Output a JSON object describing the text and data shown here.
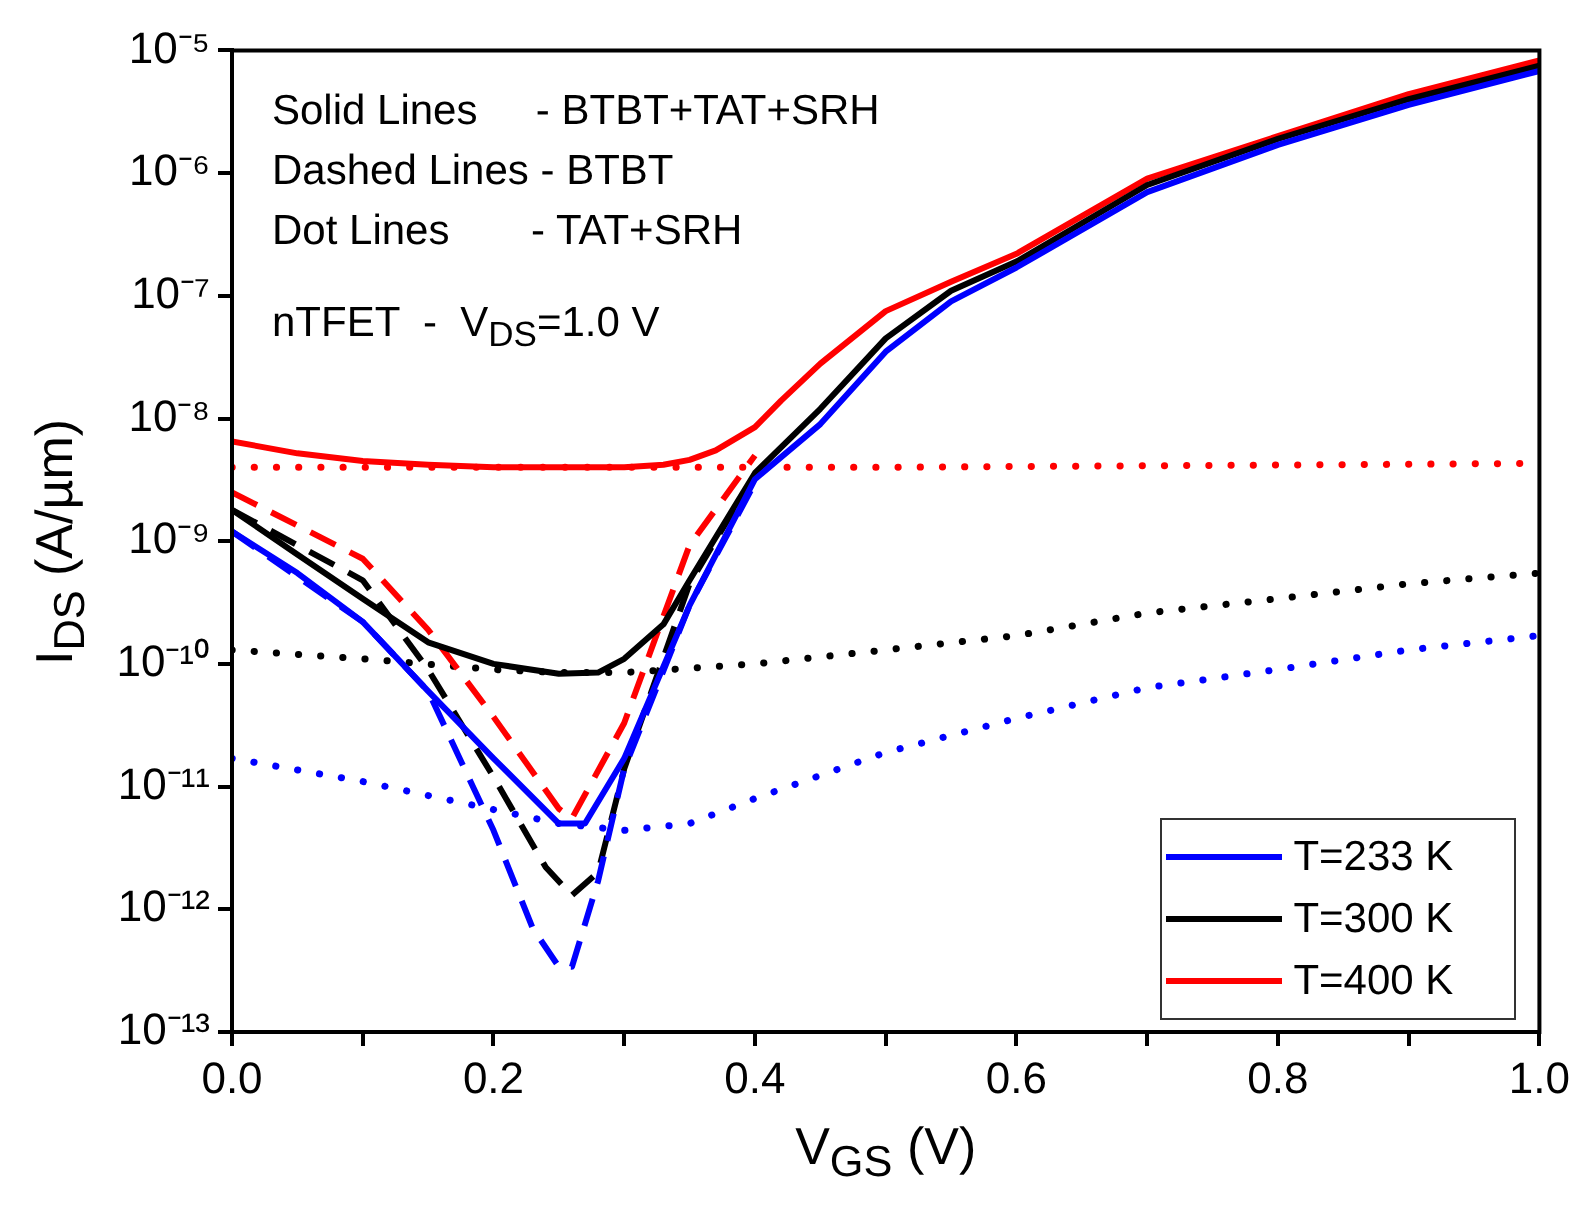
{
  "chart_data": {
    "type": "line",
    "xlabel": "V$_{GS}$ (V)",
    "ylabel": "I$_{DS}$ (A/µm)",
    "log": "y",
    "grid": false,
    "legend": "bottom right",
    "marker": "none",
    "annotations": [
      "Solid Lines     - BTBT+TAT+SRH",
      "Dashed Lines - BTBT",
      "Dot Lines       - TAT+SRH",
      "nTFET  -  V$_{DS}$=1.0 V"
    ],
    "xlim": [
      0,
      1.0
    ],
    "xticks": [
      {
        "value": 0,
        "label": "0.0"
      },
      {
        "value": 0.1,
        "label": null
      },
      {
        "value": 0.2,
        "label": "0.2"
      },
      {
        "value": 0.3,
        "label": null
      },
      {
        "value": 0.4,
        "label": "0.4"
      },
      {
        "value": 0.5,
        "label": null
      },
      {
        "value": 0.6,
        "label": "0.6"
      },
      {
        "value": 0.7,
        "label": null
      },
      {
        "value": 0.8,
        "label": "0.8"
      },
      {
        "value": 0.9,
        "label": null
      },
      {
        "value": 1.0,
        "label": "1.0"
      }
    ],
    "ylim": [
      1e-13,
      1e-05
    ],
    "yticks": [
      {
        "value": 1e-13,
        "label": "10⁻¹³"
      },
      {
        "value": 1e-12,
        "label": "10⁻¹²"
      },
      {
        "value": 1e-11,
        "label": "10⁻¹¹"
      },
      {
        "value": 1e-10,
        "label": "10⁻¹⁰"
      },
      {
        "value": 1e-09,
        "label": "10⁻⁹"
      },
      {
        "value": 1e-08,
        "label": "10⁻⁸"
      },
      {
        "value": 1e-07,
        "label": "10⁻⁷"
      },
      {
        "value": 1e-06,
        "label": "10⁻⁶"
      },
      {
        "value": 1e-05,
        "label": "10⁻⁵"
      }
    ],
    "series": [
      {
        "name": "T=233 K",
        "color": "#0000ff",
        "line_style": "solid",
        "x": [
          0,
          0.05,
          0.1,
          0.15,
          0.2,
          0.25,
          0.27,
          0.3,
          0.35,
          0.4,
          0.45,
          0.5,
          0.55,
          0.6,
          0.7,
          0.8,
          0.9,
          1.0
        ],
        "values": [
          1.2e-09,
          5.5e-10,
          2.2e-10,
          6e-11,
          1.7e-11,
          5e-12,
          5e-12,
          1.7e-11,
          3e-10,
          3.2e-09,
          9e-09,
          3.5e-08,
          9e-08,
          1.7e-07,
          7e-07,
          1.7e-06,
          3.6e-06,
          6.8e-06
        ]
      },
      {
        "name": "T=300 K",
        "color": "#000000",
        "line_style": "solid",
        "x": [
          0,
          0.05,
          0.1,
          0.15,
          0.2,
          0.25,
          0.28,
          0.3,
          0.33,
          0.35,
          0.4,
          0.45,
          0.5,
          0.55,
          0.6,
          0.7,
          0.8,
          0.9,
          1.0
        ],
        "values": [
          1.8e-09,
          7.8e-10,
          3.4e-10,
          1.5e-10,
          1e-10,
          8.3e-11,
          8.5e-11,
          1.1e-10,
          2.1e-10,
          4.8e-10,
          3.6e-09,
          1.2e-08,
          4.5e-08,
          1.1e-07,
          1.9e-07,
          8e-07,
          1.9e-06,
          4e-06,
          7.5e-06
        ]
      },
      {
        "name": "T=400 K",
        "color": "#ff0000",
        "line_style": "solid",
        "x": [
          0,
          0.05,
          0.1,
          0.15,
          0.2,
          0.25,
          0.3,
          0.33,
          0.35,
          0.37,
          0.4,
          0.42,
          0.45,
          0.5,
          0.55,
          0.6,
          0.7,
          0.8,
          0.9,
          1.0
        ],
        "values": [
          6.5e-09,
          5.2e-09,
          4.5e-09,
          4.2e-09,
          4e-09,
          4e-09,
          4e-09,
          4.2e-09,
          4.6e-09,
          5.5e-09,
          8.5e-09,
          1.4e-08,
          2.8e-08,
          7.5e-08,
          1.3e-07,
          2.2e-07,
          9e-07,
          2e-06,
          4.4e-06,
          8.3e-06
        ]
      },
      {
        "color": "#0000ff",
        "line_style": "dashed",
        "x": [
          0,
          0.1,
          0.15,
          0.2,
          0.23,
          0.25,
          0.26,
          0.28,
          0.3,
          0.35,
          0.4
        ],
        "values": [
          1.2e-09,
          2.2e-10,
          6e-11,
          4.4e-12,
          7e-13,
          3.4e-13,
          3.4e-13,
          1.7e-12,
          1.4e-11,
          3e-10,
          3e-09
        ]
      },
      {
        "color": "#000000",
        "line_style": "dashed",
        "x": [
          0,
          0.1,
          0.15,
          0.2,
          0.24,
          0.26,
          0.28,
          0.3,
          0.35,
          0.4
        ],
        "values": [
          1.8e-09,
          4.8e-10,
          9e-11,
          1.2e-11,
          2.2e-12,
          1.3e-12,
          2e-12,
          1.4e-11,
          4.5e-10,
          3.5e-09
        ]
      },
      {
        "color": "#ff0000",
        "line_style": "dashed",
        "x": [
          0,
          0.1,
          0.15,
          0.2,
          0.25,
          0.26,
          0.3,
          0.35,
          0.4
        ],
        "values": [
          2.5e-09,
          7.2e-10,
          1.9e-10,
          3.7e-11,
          6.6e-12,
          5.5e-12,
          3.3e-11,
          9.3e-10,
          5e-09
        ]
      },
      {
        "color": "#0000ff",
        "line_style": "dotted",
        "x": [
          0,
          0.1,
          0.2,
          0.25,
          0.3,
          0.35,
          0.4,
          0.5,
          0.6,
          0.7,
          0.8,
          0.9,
          1.0
        ],
        "values": [
          1.7e-11,
          1.1e-11,
          6.5e-12,
          5e-12,
          4.4e-12,
          5e-12,
          8e-12,
          1.9e-11,
          3.6e-11,
          6.4e-11,
          9e-11,
          1.3e-10,
          1.7e-10
        ]
      },
      {
        "color": "#000000",
        "line_style": "dotted",
        "x": [
          0,
          0.1,
          0.2,
          0.25,
          0.3,
          0.4,
          0.5,
          0.6,
          0.7,
          0.8,
          0.9,
          1.0
        ],
        "values": [
          1.3e-10,
          1.1e-10,
          9e-11,
          8.5e-11,
          8.5e-11,
          1e-10,
          1.3e-10,
          1.7e-10,
          2.6e-10,
          3.4e-10,
          4.5e-10,
          5.5e-10
        ]
      },
      {
        "color": "#ff0000",
        "line_style": "dotted",
        "x": [
          0,
          0.5,
          1.0
        ],
        "values": [
          4e-09,
          4e-09,
          4.3e-09
        ]
      }
    ]
  }
}
